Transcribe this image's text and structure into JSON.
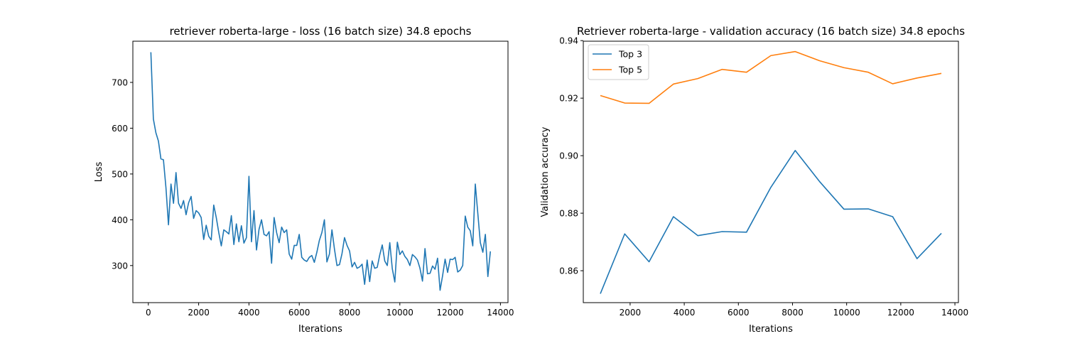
{
  "chart_data": [
    {
      "type": "line",
      "title": "retriever roberta-large - loss (16 batch size) 34.8 epochs",
      "xlabel": "Iterations",
      "ylabel": "Loss",
      "xlim": [
        -616,
        14300
      ],
      "ylim": [
        219,
        790
      ],
      "xticks": [
        0,
        2000,
        4000,
        6000,
        8000,
        10000,
        12000,
        14000
      ],
      "xtick_labels": [
        "0",
        "2000",
        "4000",
        "6000",
        "8000",
        "10000",
        "12000",
        "14000"
      ],
      "yticks": [
        300,
        400,
        500,
        600,
        700
      ],
      "ytick_labels": [
        "300",
        "400",
        "500",
        "600",
        "700"
      ],
      "grid": false,
      "series": [
        {
          "color": "#1f77b4",
          "x": [
            100,
            200,
            300,
            400,
            500,
            600,
            700,
            800,
            900,
            1000,
            1100,
            1200,
            1300,
            1400,
            1500,
            1600,
            1700,
            1800,
            1900,
            2000,
            2100,
            2200,
            2300,
            2400,
            2500,
            2600,
            2700,
            2800,
            2900,
            3000,
            3100,
            3200,
            3300,
            3400,
            3500,
            3600,
            3700,
            3800,
            3900,
            4000,
            4100,
            4200,
            4300,
            4400,
            4500,
            4600,
            4700,
            4800,
            4900,
            5000,
            5100,
            5200,
            5300,
            5400,
            5500,
            5600,
            5700,
            5800,
            5900,
            6000,
            6100,
            6200,
            6300,
            6400,
            6500,
            6600,
            6700,
            6800,
            6900,
            7000,
            7100,
            7200,
            7300,
            7400,
            7500,
            7600,
            7700,
            7800,
            7900,
            8000,
            8100,
            8200,
            8300,
            8400,
            8500,
            8600,
            8700,
            8800,
            8900,
            9000,
            9100,
            9200,
            9300,
            9400,
            9500,
            9600,
            9700,
            9800,
            9900,
            10000,
            10100,
            10200,
            10300,
            10400,
            10500,
            10600,
            10700,
            10800,
            10900,
            11000,
            11100,
            11200,
            11300,
            11400,
            11500,
            11600,
            11700,
            11800,
            11900,
            12000,
            12100,
            12200,
            12300,
            12400,
            12500,
            12600,
            12700,
            12800,
            12900,
            13000,
            13100,
            13200,
            13300,
            13400,
            13500,
            13600
          ],
          "y": [
            766,
            620,
            590,
            572,
            533,
            531,
            470,
            389,
            478,
            436,
            503,
            436,
            425,
            442,
            411,
            437,
            451,
            403,
            420,
            415,
            405,
            357,
            388,
            364,
            356,
            432,
            405,
            372,
            343,
            378,
            374,
            369,
            409,
            346,
            391,
            352,
            387,
            349,
            361,
            495,
            352,
            420,
            334,
            379,
            400,
            368,
            365,
            374,
            305,
            405,
            372,
            350,
            384,
            372,
            378,
            325,
            314,
            344,
            344,
            368,
            318,
            312,
            309,
            318,
            322,
            307,
            329,
            355,
            372,
            400,
            308,
            325,
            378,
            336,
            300,
            302,
            326,
            361,
            344,
            332,
            297,
            307,
            294,
            297,
            303,
            259,
            312,
            265,
            310,
            294,
            296,
            323,
            345,
            310,
            300,
            350,
            293,
            264,
            351,
            324,
            332,
            320,
            313,
            300,
            324,
            319,
            312,
            294,
            266,
            337,
            282,
            283,
            299,
            292,
            316,
            246,
            278,
            314,
            285,
            314,
            313,
            318,
            286,
            290,
            300,
            408,
            384,
            376,
            343,
            478,
            414,
            350,
            329,
            368,
            276,
            331
          ]
        }
      ]
    },
    {
      "type": "line",
      "title": "Retriever roberta-large - validation accuracy (16 batch size) 34.8 epochs",
      "xlabel": "Iterations",
      "ylabel": "Validation accuracy",
      "xlim": [
        270,
        14130
      ],
      "ylim": [
        0.8489,
        0.9398
      ],
      "xticks": [
        2000,
        4000,
        6000,
        8000,
        10000,
        12000,
        14000
      ],
      "xtick_labels": [
        "2000",
        "4000",
        "6000",
        "8000",
        "10000",
        "12000",
        "14000"
      ],
      "yticks": [
        0.86,
        0.88,
        0.9,
        0.92,
        0.94
      ],
      "ytick_labels": [
        "0.86",
        "0.88",
        "0.90",
        "0.92",
        "0.94"
      ],
      "grid": false,
      "legend_position": "top-left",
      "series": [
        {
          "name": "Top 3",
          "color": "#1f77b4",
          "x": [
            900,
            1800,
            2700,
            3600,
            4500,
            5400,
            6300,
            7200,
            8100,
            9000,
            9900,
            10800,
            11700,
            12600,
            13500
          ],
          "y": [
            0.852,
            0.8728,
            0.8631,
            0.8788,
            0.8722,
            0.8736,
            0.8734,
            0.889,
            0.9018,
            0.891,
            0.8814,
            0.8815,
            0.8788,
            0.8642,
            0.873
          ]
        },
        {
          "name": "Top 5",
          "color": "#ff7f0e",
          "x": [
            900,
            1800,
            2700,
            3600,
            4500,
            5400,
            6300,
            7200,
            8100,
            9000,
            9900,
            10800,
            11700,
            12600,
            13500
          ],
          "y": [
            0.9209,
            0.9183,
            0.9182,
            0.9249,
            0.9268,
            0.93,
            0.929,
            0.9348,
            0.9362,
            0.933,
            0.9306,
            0.929,
            0.925,
            0.927,
            0.9286
          ]
        }
      ]
    }
  ]
}
